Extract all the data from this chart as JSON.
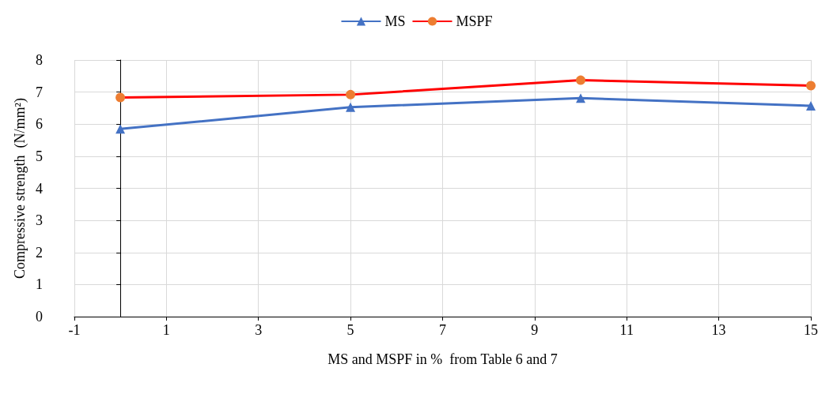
{
  "chart_data": {
    "type": "line",
    "xlabel": "MS and MSPF in %  from Table 6 and 7",
    "ylabel": "Compressive strength  (N/mm²)",
    "x": [
      0,
      5,
      10,
      15
    ],
    "series": [
      {
        "name": "MS",
        "color": "#4472c4",
        "values": [
          5.85,
          6.53,
          6.81,
          6.57
        ],
        "marker": "triangle"
      },
      {
        "name": "MSPF",
        "color": "#ff0000",
        "values": [
          6.83,
          6.92,
          7.37,
          7.2
        ],
        "marker": "circle"
      }
    ],
    "xlim": [
      -1,
      15
    ],
    "xticks": [
      -1,
      1,
      3,
      5,
      7,
      9,
      11,
      13,
      15
    ],
    "ylim": [
      0,
      8
    ],
    "yticks": [
      0,
      1,
      2,
      3,
      4,
      5,
      6,
      7,
      8
    ],
    "grid": true,
    "legend": "top"
  }
}
